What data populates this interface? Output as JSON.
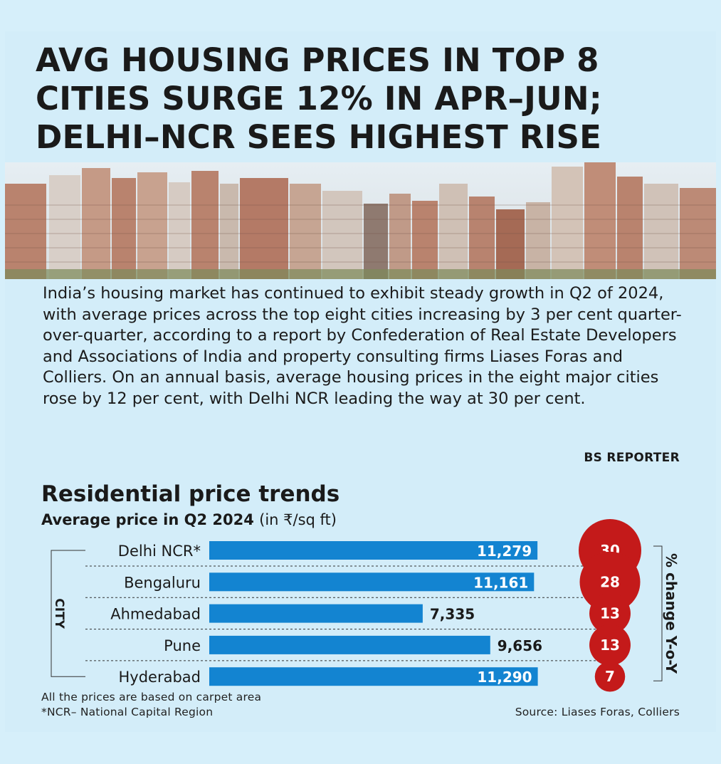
{
  "headline": "AVG HOUSING PRICES IN TOP 8 CITIES SURGE 12% IN APR–JUN; DELHI–NCR SEES HIGHEST RISE",
  "intro": "India’s housing market has continued to exhibit steady growth in Q2 of 2024, with average prices across the top eight cities increasing by 3 per cent quarter-over-quarter, according to a report by Confederation of Real Estate Developers and Associations of India and property consulting firms Liases Foras and Colliers. On an annual basis, average housing prices in the eight major cities rose by 12 per cent, with Delhi NCR leading the way at 30 per cent.",
  "byline": "BS REPORTER",
  "notes": [
    "All the prices are based on carpet area",
    "*NCR– National Capital Region"
  ],
  "source": "Source: Liases Foras, Colliers",
  "colors": {
    "bar": "#1384d1",
    "bubble": "#c41a1a",
    "background": "#d3edf9"
  },
  "chart_data": {
    "type": "bar",
    "orientation": "horizontal",
    "title": "Residential price trends",
    "subtitle": "Average price in Q2 2024",
    "subtitle_unit": "(in ₹/sq ft)",
    "ylabel": "CITY",
    "categories": [
      "Delhi NCR*",
      "Bengaluru",
      "Ahmedabad",
      "Pune",
      "Hyderabad"
    ],
    "values": [
      11279,
      11161,
      7335,
      9656,
      11290
    ],
    "value_labels": [
      "11,279",
      "11,161",
      "7,335",
      "9,656",
      "11,290"
    ],
    "secondary_series": {
      "name": "% change Y-o-Y",
      "values": [
        30,
        28,
        13,
        13,
        7
      ]
    },
    "xlim": [
      0,
      11300
    ],
    "grid": false,
    "legend": "none"
  }
}
